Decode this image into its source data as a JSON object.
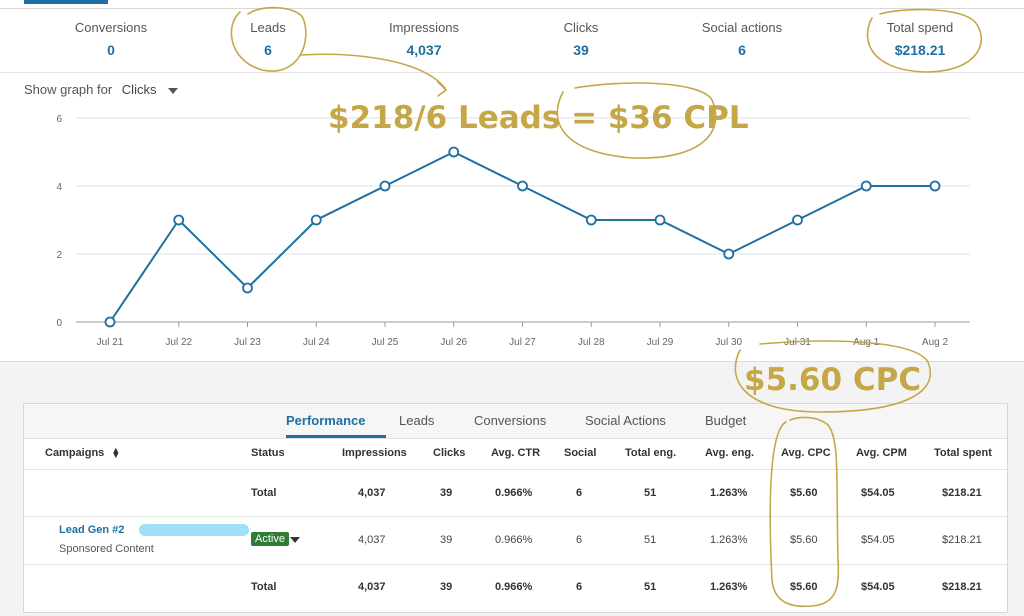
{
  "metrics": [
    {
      "label": "Conversions",
      "value": "0"
    },
    {
      "label": "Leads",
      "value": "6"
    },
    {
      "label": "Impressions",
      "value": "4,037"
    },
    {
      "label": "Clicks",
      "value": "39"
    },
    {
      "label": "Social actions",
      "value": "6"
    },
    {
      "label": "Total spend",
      "value": "$218.21"
    }
  ],
  "graph_selector": {
    "label": "Show graph for",
    "selected": "Clicks"
  },
  "chart_data": {
    "type": "line",
    "title": "",
    "xlabel": "",
    "ylabel": "",
    "ylim": [
      0,
      6
    ],
    "yticks": [
      "0",
      "2",
      "4",
      "6"
    ],
    "categories": [
      "Jul 21",
      "Jul 22",
      "Jul 23",
      "Jul 24",
      "Jul 25",
      "Jul 26",
      "Jul 27",
      "Jul 28",
      "Jul 29",
      "Jul 30",
      "Jul 31",
      "Aug 1",
      "Aug 2"
    ],
    "series": [
      {
        "values": [
          0,
          3,
          1,
          3,
          4,
          5,
          4,
          3,
          3,
          2,
          3,
          4,
          4
        ]
      }
    ],
    "line_color": "#1f6fa3",
    "grid": true
  },
  "annotations": {
    "cpl_note": "$218/6 Leads = $36 CPL",
    "cpc_note": "$5.60 CPC",
    "color": "#c6a747"
  },
  "tabs": [
    "Performance",
    "Leads",
    "Conversions",
    "Social Actions",
    "Budget"
  ],
  "table": {
    "headers": [
      "Campaigns",
      "Status",
      "Impressions",
      "Clicks",
      "Avg. CTR",
      "Social",
      "Total eng.",
      "Avg. eng.",
      "Avg. CPC",
      "Avg. CPM",
      "Total spent"
    ],
    "total_row": {
      "label": "Total",
      "impressions": "4,037",
      "clicks": "39",
      "ctr": "0.966%",
      "social": "6",
      "total_eng": "51",
      "avg_eng": "1.263%",
      "cpc": "$5.60",
      "cpm": "$54.05",
      "spent": "$218.21"
    },
    "campaign_row": {
      "name": "Lead Gen #2",
      "type": "Sponsored Content",
      "status": "Active",
      "impressions": "4,037",
      "clicks": "39",
      "ctr": "0.966%",
      "social": "6",
      "total_eng": "51",
      "avg_eng": "1.263%",
      "cpc": "$5.60",
      "cpm": "$54.05",
      "spent": "$218.21"
    },
    "footer_row": {
      "label": "Total",
      "impressions": "4,037",
      "clicks": "39",
      "ctr": "0.966%",
      "social": "6",
      "total_eng": "51",
      "avg_eng": "1.263%",
      "cpc": "$5.60",
      "cpm": "$54.05",
      "spent": "$218.21"
    }
  }
}
